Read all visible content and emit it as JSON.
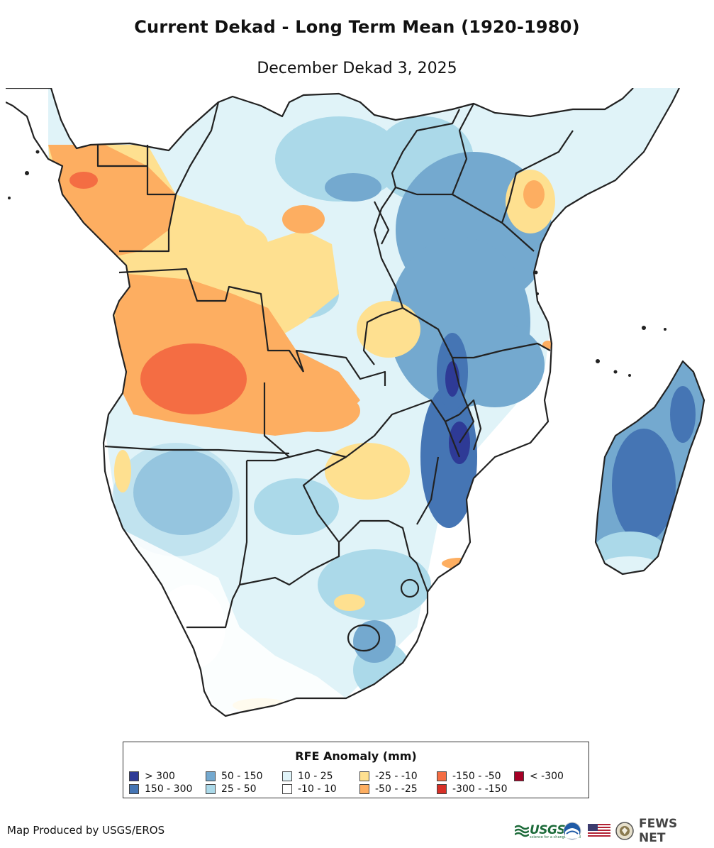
{
  "header": {
    "title": "Current Dekad - Long Term Mean (1920-1980)",
    "subtitle": "December Dekad 3, 2025"
  },
  "legend": {
    "title": "RFE Anomaly (mm)",
    "items": [
      {
        "label": "> 300",
        "color": "#2e3a96"
      },
      {
        "label": "150 - 300",
        "color": "#4575b4"
      },
      {
        "label": "50 - 150",
        "color": "#74a9cf"
      },
      {
        "label": "25 - 50",
        "color": "#abd9e9"
      },
      {
        "label": "10 - 25",
        "color": "#e0f3f8"
      },
      {
        "label": "-10 - 10",
        "color": "#ffffff"
      },
      {
        "label": "-25 - -10",
        "color": "#fee090"
      },
      {
        "label": "-50 - -25",
        "color": "#fdae61"
      },
      {
        "label": "-150 - -50",
        "color": "#f46d43"
      },
      {
        "label": "-300 - -150",
        "color": "#d73027"
      },
      {
        "label": "< -300",
        "color": "#a50026"
      }
    ]
  },
  "footer": {
    "credit": "Map Produced by USGS/EROS",
    "logos": {
      "usgs": "USGS",
      "usgs_tagline": "science for a changing world",
      "fews": "FEWS NET",
      "noaa_icon": "noaa-logo-icon",
      "flag_icon": "us-flag-icon",
      "state_seal_icon": "state-department-seal-icon"
    }
  },
  "colors": {
    "border": "#222222",
    "land": "#ffffff",
    "blue_light": "#e0f3f8",
    "blue_mid": "#abd9e9",
    "blue": "#74a9cf",
    "blue_dark": "#4575b4",
    "blue_darkest": "#2e3a96",
    "yellow": "#fee090",
    "orange": "#fdae61",
    "orange_dark": "#f46d43",
    "red": "#d73027"
  }
}
